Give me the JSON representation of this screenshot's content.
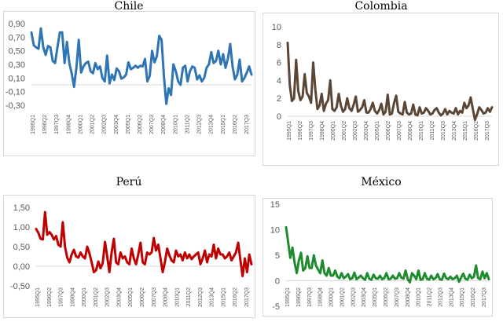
{
  "chart_data": [
    {
      "type": "line",
      "title": "Chile",
      "color": "#2e75b6",
      "ylim": [
        -0.3,
        0.9
      ],
      "yticks": [
        "-0,30",
        "-0,10",
        "0,10",
        "0,30",
        "0,50",
        "0,70",
        "0,90"
      ],
      "ytick_values": [
        -0.3,
        -0.1,
        0.1,
        0.3,
        0.5,
        0.7,
        0.9
      ],
      "xticks": [
        "1995Q1",
        "1996Q2",
        "1997Q3",
        "1998Q4",
        "2000Q1",
        "2001Q2",
        "2002Q3",
        "2003Q4",
        "2005Q1",
        "2006Q2",
        "2007Q3",
        "2008Q4",
        "2010Q1",
        "2011Q2",
        "2012Q3",
        "2013Q4",
        "2015Q1",
        "2016Q2",
        "2017Q3"
      ],
      "values": [
        0.77,
        0.58,
        0.55,
        0.53,
        0.83,
        0.55,
        0.44,
        0.57,
        0.55,
        0.35,
        0.32,
        0.55,
        0.77,
        0.77,
        0.32,
        0.63,
        0.32,
        0.17,
        -0.03,
        0.25,
        0.66,
        0.18,
        0.27,
        0.32,
        0.34,
        0.2,
        0.17,
        0.32,
        0.23,
        0.27,
        0.1,
        0.05,
        0.43,
        0.02,
        0.15,
        0.07,
        0.24,
        0.2,
        0.09,
        0.11,
        0.15,
        0.33,
        0.23,
        0.25,
        0.28,
        0.25,
        0.28,
        0.27,
        0.38,
        0.05,
        0.13,
        0.5,
        0.33,
        0.42,
        0.72,
        0.66,
        0.12,
        -0.28,
        -0.05,
        -0.15,
        0.3,
        0.2,
        0.05,
        0.0,
        0.25,
        0.28,
        0.05,
        0.2,
        0.27,
        0.25,
        0.08,
        0.14,
        0.05,
        0.1,
        0.25,
        0.3,
        0.48,
        0.32,
        0.35,
        0.5,
        0.3,
        0.45,
        0.25,
        0.38,
        0.6,
        0.27,
        0.08,
        0.15,
        0.37,
        0.05,
        0.1,
        0.18,
        0.27,
        0.15
      ]
    },
    {
      "type": "line",
      "title": "Colombia",
      "color": "#5b4636",
      "ylim": [
        0,
        10
      ],
      "yticks": [
        "0",
        "2",
        "4",
        "6",
        "8",
        "10"
      ],
      "ytick_values": [
        0,
        2,
        4,
        6,
        8,
        10
      ],
      "xticks": [
        "1995Q1",
        "1996Q2",
        "1997Q3",
        "1998Q4",
        "2000Q1",
        "2001Q2",
        "2002Q3",
        "2003Q4",
        "2005Q1",
        "2006Q2",
        "2007Q3",
        "2008Q4",
        "2010Q1",
        "2011Q2",
        "2012Q3",
        "2013Q4",
        "2015Q1",
        "2016Q2",
        "2017Q3"
      ],
      "values": [
        8.2,
        3.5,
        1.7,
        2.0,
        6.3,
        2.8,
        1.8,
        2.2,
        4.7,
        2.6,
        2.2,
        1.5,
        6.0,
        3.0,
        0.8,
        1.2,
        2.5,
        0.6,
        1.4,
        1.8,
        4.0,
        0.8,
        0.6,
        1.0,
        2.5,
        1.2,
        0.5,
        0.8,
        2.0,
        0.9,
        0.6,
        1.3,
        2.2,
        0.5,
        0.7,
        1.0,
        1.8,
        0.4,
        0.4,
        0.8,
        1.5,
        0.6,
        0.3,
        0.7,
        1.4,
        0.2,
        0.5,
        2.4,
        0.2,
        0.3,
        1.5,
        2.3,
        0.5,
        0.3,
        0.2,
        1.6,
        0.4,
        0.2,
        0.3,
        1.3,
        0.2,
        0.1,
        1.0,
        0.3,
        0.4,
        0.9,
        0.6,
        0.2,
        0.3,
        0.7,
        0.9,
        0.4,
        0.1,
        0.3,
        0.8,
        0.2,
        0.6,
        0.4,
        0.3,
        0.9,
        0.2,
        0.6,
        0.4,
        1.5,
        0.9,
        1.2,
        2.1,
        0.8,
        -0.4,
        0.2,
        1.0,
        0.7,
        0.3,
        0.4,
        0.9,
        0.5,
        1.0
      ]
    },
    {
      "type": "line",
      "title": "Perú",
      "color": "#c00000",
      "ylim": [
        -0.5,
        1.5
      ],
      "yticks": [
        "-0,50",
        "0,00",
        "0,50",
        "1,00",
        "1,50"
      ],
      "ytick_values": [
        -0.5,
        0.0,
        0.5,
        1.0,
        1.5
      ],
      "xticks": [
        "1995Q1",
        "1996Q2",
        "1997Q3",
        "1998Q4",
        "2000Q1",
        "2001Q2",
        "2002Q3",
        "2003Q4",
        "2005Q1",
        "2006Q2",
        "2007Q3",
        "2008Q4",
        "2010Q1",
        "2011Q2",
        "2012Q3",
        "2013Q4",
        "2015Q1",
        "2016Q2",
        "2017Q3"
      ],
      "values": [
        0.95,
        0.85,
        0.7,
        0.68,
        1.38,
        0.8,
        0.87,
        0.8,
        0.68,
        0.77,
        0.55,
        0.5,
        1.12,
        0.5,
        0.22,
        0.1,
        0.3,
        0.42,
        0.25,
        0.22,
        0.35,
        0.25,
        0.2,
        0.5,
        0.33,
        0.1,
        -0.15,
        -0.1,
        0.12,
        -0.05,
        0.08,
        0.62,
        0.25,
        -0.15,
        0.35,
        0.7,
        0.1,
        0.05,
        0.35,
        0.2,
        0.25,
        0.1,
        0.05,
        0.45,
        0.2,
        0.05,
        0.3,
        0.6,
        0.1,
        0.05,
        0.35,
        0.3,
        0.35,
        0.72,
        0.4,
        0.55,
        0.2,
        -0.15,
        0.1,
        0.45,
        0.28,
        0.15,
        0.1,
        0.4,
        0.25,
        0.3,
        0.15,
        0.35,
        0.2,
        0.3,
        0.18,
        0.25,
        0.3,
        0.35,
        0.05,
        0.2,
        0.4,
        0.1,
        0.3,
        0.25,
        0.55,
        0.2,
        0.45,
        0.3,
        0.3,
        0.2,
        0.25,
        0.35,
        0.15,
        0.25,
        0.35,
        0.6,
        0.15,
        -0.25,
        0.2,
        -0.15,
        0.3,
        0.05
      ]
    },
    {
      "type": "line",
      "title": "México",
      "color": "#1e8c2e",
      "ylim": [
        -5,
        15
      ],
      "yticks": [
        "-5",
        "0",
        "5",
        "10",
        "15"
      ],
      "ytick_values": [
        -5,
        0,
        5,
        10,
        15
      ],
      "xticks": [
        "1995Q1",
        "1996Q2",
        "1997Q3",
        "1998Q4",
        "2000Q1",
        "2001Q2",
        "2002Q3",
        "2003Q4",
        "2005Q1",
        "2006Q2",
        "2007Q3",
        "2008Q4",
        "2010Q1",
        "2011Q2",
        "2012Q3",
        "2013Q4",
        "2015Q1",
        "2016Q2",
        "2017Q3"
      ],
      "values": [
        10.5,
        7.5,
        4.5,
        6.5,
        3.5,
        1.5,
        4.0,
        5.5,
        2.0,
        2.5,
        4.8,
        2.5,
        2.5,
        5.0,
        3.0,
        2.2,
        1.5,
        4.0,
        1.5,
        1.0,
        2.5,
        1.0,
        1.0,
        2.0,
        0.8,
        0.5,
        1.5,
        0.5,
        0.8,
        1.3,
        0.3,
        0.5,
        1.6,
        0.3,
        0.6,
        1.0,
        0.5,
        0.2,
        1.5,
        0.4,
        0.2,
        1.2,
        0.5,
        0.4,
        1.0,
        0.3,
        0.5,
        1.5,
        0.3,
        0.4,
        1.0,
        0.4,
        0.5,
        1.5,
        0.6,
        0.4,
        2.0,
        0.3,
        -0.3,
        1.5,
        1.0,
        0.3,
        2.0,
        0.2,
        0.3,
        1.5,
        0.4,
        0.2,
        1.0,
        0.3,
        0.5,
        1.3,
        0.3,
        0.2,
        1.4,
        0.5,
        0.3,
        0.8,
        0.3,
        0.5,
        1.0,
        -0.2,
        0.6,
        1.4,
        0.4,
        0.2,
        1.2,
        0.5,
        0.8,
        3.0,
        0.5,
        0.3,
        1.8,
        0.5,
        1.5,
        0.3
      ]
    }
  ]
}
